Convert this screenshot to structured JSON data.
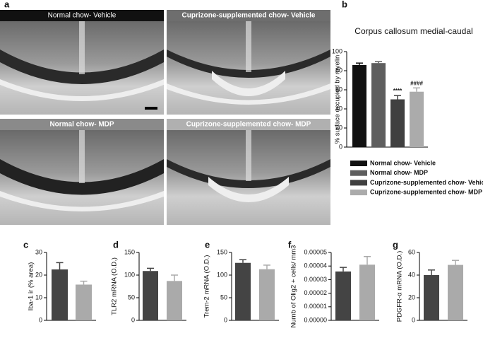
{
  "figure": {
    "panel": "a",
    "micrographs": [
      "Normal chow- Vehicle",
      "Cuprizone-supplemented chow- Vehicle",
      "Normal chow- MDP",
      "Cuprizone-supplemented chow- MDP"
    ]
  },
  "chart_data": [
    {
      "type": "bar",
      "panel": "b",
      "title": "Corpus callosum medial-caudal",
      "ylabel": "% surface occupied by myelin",
      "categories": [
        "Normal chow- Vehicle",
        "Normal chow- MDP",
        "Cuprizone-supplemented chow- Vehicle",
        "Cuprizone-supplemented chow- MDP"
      ],
      "colors": [
        "#111111",
        "#5e5e5e",
        "#404040",
        "#ababab"
      ],
      "values": [
        86,
        88,
        50,
        58
      ],
      "errors": [
        2,
        1.5,
        4,
        4
      ],
      "value_annotations": [
        null,
        null,
        "****",
        "####"
      ],
      "ylim": [
        0,
        100
      ],
      "yticks": [
        0,
        20,
        40,
        60,
        80,
        100
      ],
      "legend": "bottom"
    },
    {
      "type": "bar",
      "panel": "c",
      "ylabel": "Iba-1 ir (% area)",
      "colors": [
        "#444444",
        "#aaaaaa"
      ],
      "values": [
        22.5,
        15.8
      ],
      "errors": [
        3,
        1.5
      ],
      "ylim": [
        0,
        30
      ],
      "yticks": [
        0,
        10,
        20,
        30
      ]
    },
    {
      "type": "bar",
      "panel": "d",
      "ylabel": "TLR2 mRNA (O.D.)",
      "colors": [
        "#444444",
        "#aaaaaa"
      ],
      "values": [
        109,
        87
      ],
      "errors": [
        6,
        13
      ],
      "ylim": [
        0,
        150
      ],
      "yticks": [
        0,
        50,
        100,
        150
      ]
    },
    {
      "type": "bar",
      "panel": "e",
      "ylabel": "Trem-2 mRNA (O.D.)",
      "colors": [
        "#444444",
        "#aaaaaa"
      ],
      "values": [
        127,
        113
      ],
      "errors": [
        7,
        9
      ],
      "ylim": [
        0,
        150
      ],
      "yticks": [
        0,
        50,
        100,
        150
      ]
    },
    {
      "type": "bar",
      "panel": "f",
      "ylabel": "Numb of Olig2 + cells/ mm3",
      "colors": [
        "#444444",
        "#aaaaaa"
      ],
      "values": [
        3.6e-05,
        4.1e-05
      ],
      "errors": [
        3e-06,
        6e-06
      ],
      "ylim": [
        0,
        5e-05
      ],
      "yticks": [
        {
          "value": 0,
          "label": "0.00000"
        },
        {
          "value": 1e-05,
          "label": "0.00001"
        },
        {
          "value": 2e-05,
          "label": "0.00002"
        },
        {
          "value": 3e-05,
          "label": "0.00003"
        },
        {
          "value": 4e-05,
          "label": "0.00004"
        },
        {
          "value": 5e-05,
          "label": "0.00005"
        }
      ]
    },
    {
      "type": "bar",
      "panel": "g",
      "ylabel": "PDGFR-α mRNA (O.D.)",
      "colors": [
        "#444444",
        "#aaaaaa"
      ],
      "values": [
        40,
        49
      ],
      "errors": [
        4.5,
        4
      ],
      "ylim": [
        0,
        60
      ],
      "yticks": [
        0,
        20,
        40,
        60
      ]
    }
  ]
}
